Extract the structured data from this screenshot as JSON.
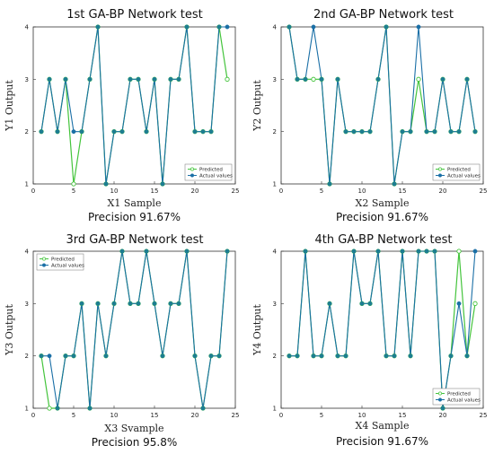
{
  "chart_data": [
    {
      "type": "line",
      "title": "1st GA-BP Network test",
      "xlabel": "X1 Sample",
      "ylabel": "Y1 Output",
      "precision_label": "Precision 91.67%",
      "xlim": [
        0,
        25
      ],
      "ylim": [
        1,
        4
      ],
      "xticks": [
        0,
        5,
        10,
        15,
        20,
        25
      ],
      "yticks": [
        1,
        2,
        3,
        4
      ],
      "legend_position": "bottom-right",
      "x": [
        1,
        2,
        3,
        4,
        5,
        6,
        7,
        8,
        9,
        10,
        11,
        12,
        13,
        14,
        15,
        16,
        17,
        18,
        19,
        20,
        21,
        22,
        23,
        24
      ],
      "series": [
        {
          "name": "Predicted",
          "color": "#44c43c",
          "values": [
            2,
            3,
            2,
            3,
            1,
            2,
            3,
            4,
            1,
            2,
            2,
            3,
            3,
            2,
            3,
            1,
            3,
            3,
            4,
            2,
            2,
            2,
            4,
            3
          ]
        },
        {
          "name": "Actual values",
          "color": "#1a6fa6",
          "values": [
            2,
            3,
            2,
            3,
            2,
            2,
            3,
            4,
            1,
            2,
            2,
            3,
            3,
            2,
            3,
            1,
            3,
            3,
            4,
            2,
            2,
            2,
            4,
            4
          ]
        }
      ]
    },
    {
      "type": "line",
      "title": "2nd GA-BP Network test",
      "xlabel": "X2 Sample",
      "ylabel": "Y2 Output",
      "precision_label": "Precision 91.67%",
      "xlim": [
        0,
        25
      ],
      "ylim": [
        1,
        4
      ],
      "xticks": [
        0,
        5,
        10,
        15,
        20,
        25
      ],
      "yticks": [
        1,
        2,
        3,
        4
      ],
      "legend_position": "bottom-right",
      "x": [
        1,
        2,
        3,
        4,
        5,
        6,
        7,
        8,
        9,
        10,
        11,
        12,
        13,
        14,
        15,
        16,
        17,
        18,
        19,
        20,
        21,
        22,
        23,
        24
      ],
      "series": [
        {
          "name": "Predicted",
          "color": "#44c43c",
          "values": [
            4,
            3,
            3,
            3,
            3,
            1,
            3,
            2,
            2,
            2,
            2,
            3,
            4,
            1,
            2,
            2,
            3,
            2,
            2,
            3,
            2,
            2,
            3,
            2
          ]
        },
        {
          "name": "Actual values",
          "color": "#1a6fa6",
          "values": [
            4,
            3,
            3,
            4,
            3,
            1,
            3,
            2,
            2,
            2,
            2,
            3,
            4,
            1,
            2,
            2,
            4,
            2,
            2,
            3,
            2,
            2,
            3,
            2
          ]
        }
      ]
    },
    {
      "type": "line",
      "title": "3rd GA-BP Network test",
      "xlabel": "X3 Svample",
      "ylabel": "Y3 Output",
      "precision_label": "Precision 95.8%",
      "xlim": [
        0,
        25
      ],
      "ylim": [
        1,
        4
      ],
      "xticks": [
        0,
        5,
        10,
        15,
        20,
        25
      ],
      "yticks": [
        1,
        2,
        3,
        4
      ],
      "legend_position": "top-left",
      "x": [
        1,
        2,
        3,
        4,
        5,
        6,
        7,
        8,
        9,
        10,
        11,
        12,
        13,
        14,
        15,
        16,
        17,
        18,
        19,
        20,
        21,
        22,
        23,
        24
      ],
      "series": [
        {
          "name": "Predicted",
          "color": "#44c43c",
          "values": [
            2,
            1,
            1,
            2,
            2,
            3,
            1,
            3,
            2,
            3,
            4,
            3,
            3,
            4,
            3,
            2,
            3,
            3,
            4,
            2,
            1,
            2,
            2,
            4
          ]
        },
        {
          "name": "Actual values",
          "color": "#1a6fa6",
          "values": [
            2,
            2,
            1,
            2,
            2,
            3,
            1,
            3,
            2,
            3,
            4,
            3,
            3,
            4,
            3,
            2,
            3,
            3,
            4,
            2,
            1,
            2,
            2,
            4
          ]
        }
      ]
    },
    {
      "type": "line",
      "title": "4th GA-BP Network test",
      "xlabel": "X4 Sample",
      "ylabel": "Y4 Output",
      "precision_label": "Precision 91.67%",
      "xlim": [
        0,
        25
      ],
      "ylim": [
        1,
        4
      ],
      "xticks": [
        0,
        5,
        10,
        15,
        20,
        25
      ],
      "yticks": [
        1,
        2,
        3,
        4
      ],
      "legend_position": "bottom-right",
      "x": [
        1,
        2,
        3,
        4,
        5,
        6,
        7,
        8,
        9,
        10,
        11,
        12,
        13,
        14,
        15,
        16,
        17,
        18,
        19,
        20,
        21,
        22,
        23,
        24
      ],
      "series": [
        {
          "name": "Predicted",
          "color": "#44c43c",
          "values": [
            2,
            2,
            4,
            2,
            2,
            3,
            2,
            2,
            4,
            3,
            3,
            4,
            2,
            2,
            4,
            2,
            4,
            4,
            4,
            1,
            2,
            4,
            2,
            3
          ]
        },
        {
          "name": "Actual values",
          "color": "#1a6fa6",
          "values": [
            2,
            2,
            4,
            2,
            2,
            3,
            2,
            2,
            4,
            3,
            3,
            4,
            2,
            2,
            4,
            2,
            4,
            4,
            4,
            1,
            2,
            3,
            2,
            4
          ]
        }
      ]
    }
  ]
}
